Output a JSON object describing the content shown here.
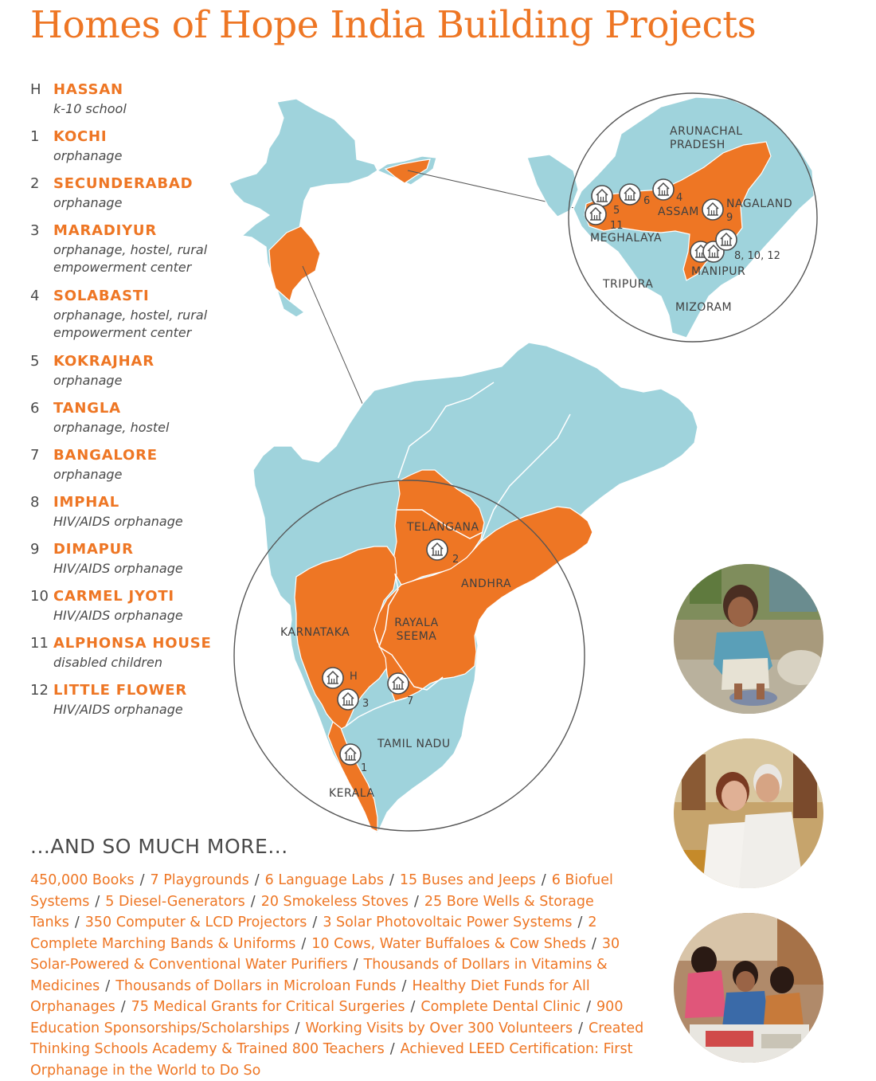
{
  "title": "Homes of Hope India Building Projects",
  "legend": [
    {
      "num": "H",
      "name": "HASSAN",
      "desc": "k-10 school"
    },
    {
      "num": "1",
      "name": "KOCHI",
      "desc": "orphanage"
    },
    {
      "num": "2",
      "name": "SECUNDERABAD",
      "desc": "orphanage"
    },
    {
      "num": "3",
      "name": "MARADIYUR",
      "desc": "orphanage, hostel, rural empowerment center"
    },
    {
      "num": "4",
      "name": "SOLABASTI",
      "desc": "orphanage, hostel, rural empowerment center"
    },
    {
      "num": "5",
      "name": "KOKRAJHAR",
      "desc": "orphanage"
    },
    {
      "num": "6",
      "name": "TANGLA",
      "desc": "orphanage, hostel"
    },
    {
      "num": "7",
      "name": "BANGALORE",
      "desc": "orphanage"
    },
    {
      "num": "8",
      "name": "IMPHAL",
      "desc": "HIV/AIDS orphanage"
    },
    {
      "num": "9",
      "name": "DIMAPUR",
      "desc": "HIV/AIDS orphanage"
    },
    {
      "num": "10",
      "name": "CARMEL JYOTI",
      "desc": "HIV/AIDS orphanage"
    },
    {
      "num": "11",
      "name": "ALPHONSA HOUSE",
      "desc": "disabled children"
    },
    {
      "num": "12",
      "name": "LITTLE FLOWER",
      "desc": "HIV/AIDS orphanage"
    }
  ],
  "map": {
    "colors": {
      "land": "#9fd3dc",
      "highlight": "#ee7624",
      "border": "#ffffff",
      "circle": "#555555"
    },
    "labels": {
      "arunachal": "ARUNACHAL PRADESH",
      "assam": "ASSAM",
      "nagaland": "NAGALAND",
      "meghalaya": "MEGHALAYA",
      "manipur": "MANIPUR",
      "tripura": "TRIPURA",
      "mizoram": "MIZORAM",
      "telangana": "TELANGANA",
      "andhra": "ANDHRA",
      "rayala": "RAYALA SEEMA",
      "karnataka": "KARNATAKA",
      "tamil": "TAMIL NADU",
      "kerala": "KERALA"
    },
    "marker_numbers": {
      "m4": "4",
      "m6": "6",
      "m5": "5",
      "m11": "11",
      "m9": "9",
      "m8_10_12": "8, 10, 12",
      "m2": "2",
      "mH": "H",
      "m3": "3",
      "m7": "7",
      "m1": "1"
    }
  },
  "more": {
    "heading": "...AND SO MUCH MORE...",
    "items": [
      "450,000 Books",
      "7 Playgrounds",
      "6 Language Labs",
      "15 Buses and Jeeps",
      "6 Biofuel Systems",
      "5 Diesel-Generators",
      "20 Smokeless Stoves",
      "25 Bore Wells & Storage Tanks",
      "350 Computer & LCD Projectors",
      "3 Solar Photovoltaic Power Systems",
      "2 Complete Marching Bands & Uniforms",
      "10 Cows, Water Buffaloes & Cow Sheds",
      "30 Solar-Powered & Conventional Water Purifiers",
      "Thousands of Dollars in Vitamins & Medicines",
      "Thousands of Dollars in Microloan Funds",
      "Healthy Diet Funds for All Orphanages",
      "75 Medical Grants for Critical Surgeries",
      "Complete Dental Clinic",
      "900 Education Sponsorships/Scholarships",
      "Working Visits by Over 300 Volunteers",
      "Created Thinking Schools Academy & Trained 800 Teachers",
      "Achieved LEED Certification: First Orphanage in the World to Do So"
    ],
    "separator": "/"
  }
}
